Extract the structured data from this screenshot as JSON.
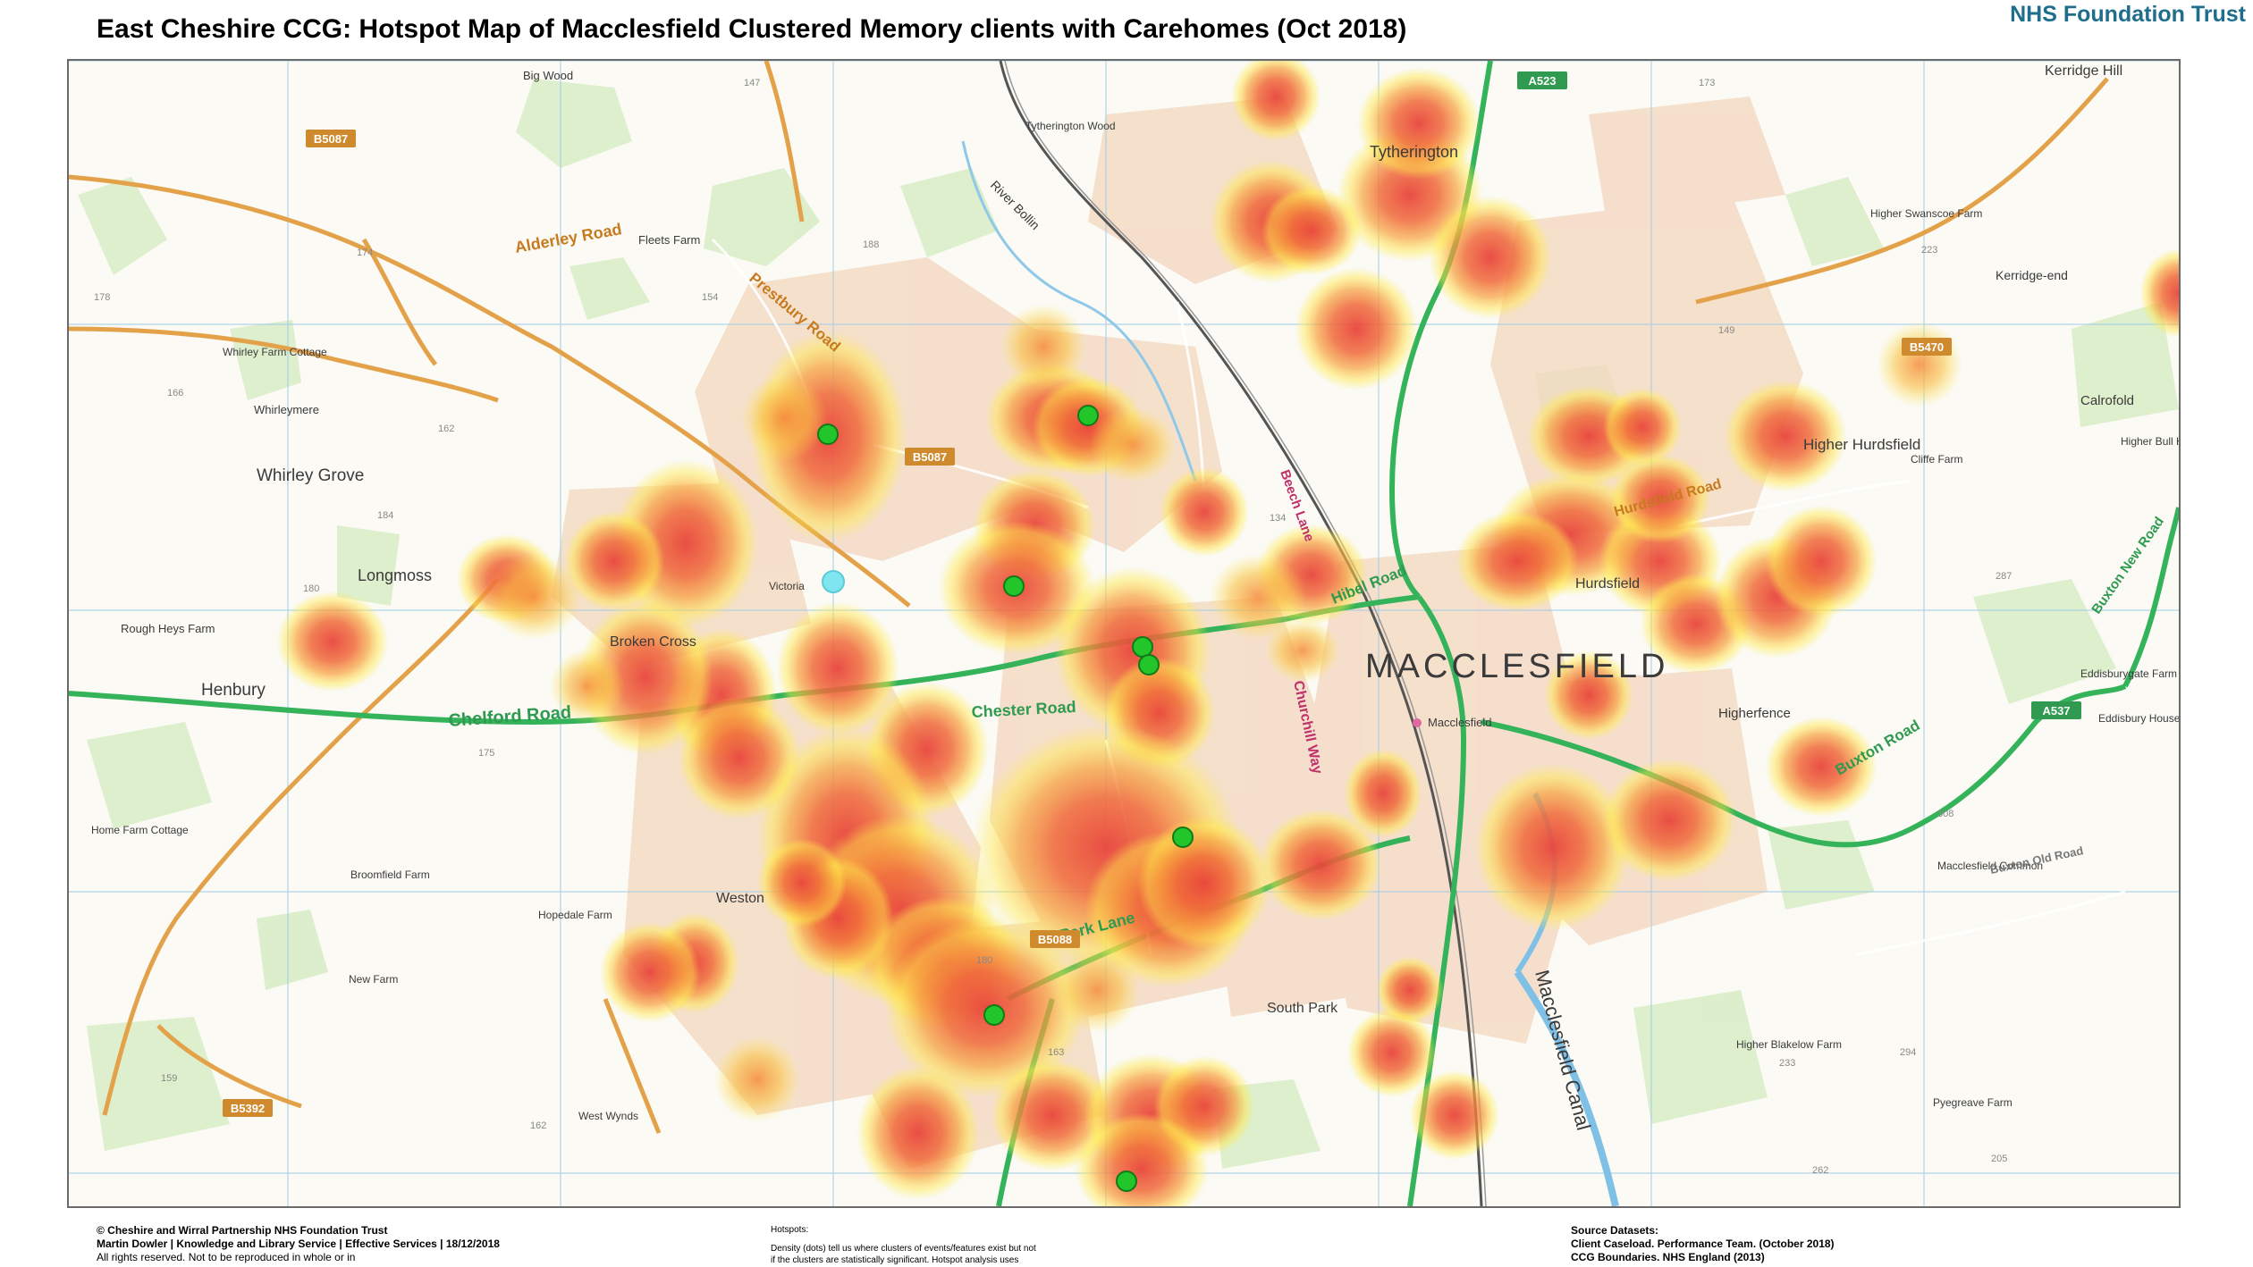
{
  "title": "East Cheshire CCG: Hotspot Map of Macclesfield Clustered Memory clients with Carehomes (Oct 2018)",
  "organisation": "NHS Foundation Trust",
  "map": {
    "town": "MACCLESFIELD",
    "places": [
      {
        "name": "Big Wood"
      },
      {
        "name": "Tytherington Wood"
      },
      {
        "name": "Tytherington"
      },
      {
        "name": "Kerridge Hill"
      },
      {
        "name": "Fleets Farm"
      },
      {
        "name": "Whirley Farm Cottage"
      },
      {
        "name": "Whirleymere"
      },
      {
        "name": "Whirley Grove"
      },
      {
        "name": "Longmoss"
      },
      {
        "name": "Rough Heys Farm"
      },
      {
        "name": "Henbury"
      },
      {
        "name": "Broken Cross"
      },
      {
        "name": "Victoria"
      },
      {
        "name": "Higher Swanscoe Farm"
      },
      {
        "name": "Kerridge-end"
      },
      {
        "name": "Calrofold"
      },
      {
        "name": "Higher Hurdsfield"
      },
      {
        "name": "Cliffe Farm"
      },
      {
        "name": "Higher Bull Hill Farm"
      },
      {
        "name": "Hurdsfield"
      },
      {
        "name": "Eddisburygate Farm"
      },
      {
        "name": "Eddisbury House Farm"
      },
      {
        "name": "Higherfence"
      },
      {
        "name": "Macclesfield"
      },
      {
        "name": "Home Farm Cottage"
      },
      {
        "name": "Broomfield Farm"
      },
      {
        "name": "Weston"
      },
      {
        "name": "Hopedale Farm"
      },
      {
        "name": "New Farm"
      },
      {
        "name": "South Park"
      },
      {
        "name": "Macclesfield Common"
      },
      {
        "name": "Higher Blakelow Farm"
      },
      {
        "name": "Pyegreave Farm"
      },
      {
        "name": "West Wynds"
      },
      {
        "name": "River Bollin"
      },
      {
        "name": "Macclesfield Canal"
      }
    ],
    "roads": [
      {
        "label": "Alderley Road"
      },
      {
        "label": "Prestbury Road"
      },
      {
        "label": "Chelford Road"
      },
      {
        "label": "Chester Road"
      },
      {
        "label": "Park Lane"
      },
      {
        "label": "Hibel Road"
      },
      {
        "label": "Churchill Way"
      },
      {
        "label": "Buxton Road"
      },
      {
        "label": "Hurdsfield Road"
      },
      {
        "label": "Beech Lane"
      },
      {
        "label": "Buxton New Road"
      },
      {
        "label": "Buxton Old Road"
      }
    ],
    "road_numbers": [
      "B5087",
      "A523",
      "B5470",
      "B5087",
      "B5088",
      "A537",
      "B5392"
    ],
    "spot_heights": [
      "147",
      "188",
      "173",
      "178",
      "174",
      "154",
      "166",
      "162",
      "184",
      "180",
      "149",
      "175",
      "159",
      "162",
      "180",
      "163",
      "134",
      "233",
      "294",
      "308",
      "287",
      "205",
      "262",
      "223"
    ],
    "carehome_count": 9,
    "colors": {
      "hotspot_core": "#e8453c",
      "hotspot_mid": "#f58a3a",
      "hotspot_edge": "#ffe94a",
      "carehome": "#22c52a",
      "primary_road": "#34b35a",
      "b_road": "#e3a24a",
      "urban": "#f3d7bf"
    }
  },
  "footer": {
    "left": [
      "© Cheshire and Wirral Partnership NHS Foundation Trust",
      "Martin Dowler | Knowledge and Library Service | Effective Services | 18/12/2018",
      "All rights reserved. Not to be reproduced in whole or in"
    ],
    "middle": [
      "Hotspots:",
      "Density (dots) tell us where clusters of events/features exist but not",
      "if the clusters are statistically significant. Hotspot analysis uses"
    ],
    "right": [
      "Source Datasets:",
      "Client Caseload. Performance Team. (October 2018)",
      "CCG Boundaries. NHS England (2013)"
    ]
  }
}
